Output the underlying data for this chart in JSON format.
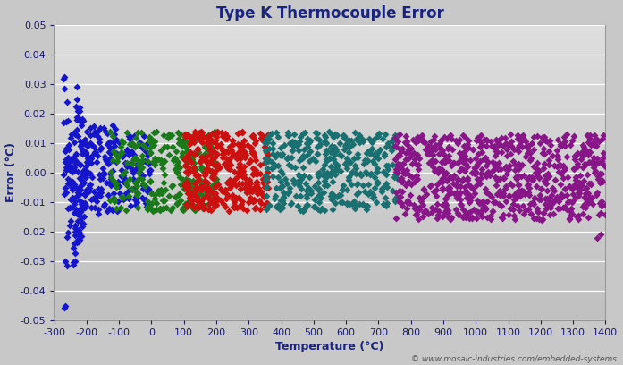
{
  "title": "Type K Thermocouple Error",
  "xlabel": "Temperature (°C)",
  "ylabel": "Error (°C)",
  "xlim": [
    -300,
    1400
  ],
  "ylim": [
    -0.05,
    0.05
  ],
  "xticks": [
    -300,
    -200,
    -100,
    0,
    100,
    200,
    300,
    400,
    500,
    600,
    700,
    800,
    900,
    1000,
    1100,
    1200,
    1300,
    1400
  ],
  "yticks": [
    -0.05,
    -0.04,
    -0.03,
    -0.02,
    -0.01,
    0.0,
    0.01,
    0.02,
    0.03,
    0.04,
    0.05
  ],
  "outer_bg_color": "#c8c8c8",
  "title_color": "#1a237e",
  "axis_label_color": "#1a237e",
  "tick_label_color": "#1a1a6e",
  "grid_color": "#ffffff",
  "watermark": "© www.mosaic-industries.com/embedded-systems",
  "watermark_color": "#555555",
  "blue_color": "#1515cc",
  "green_color": "#1a7a1a",
  "red_color": "#cc1010",
  "teal_color": "#1a7070",
  "purple_color": "#881688",
  "marker": "D",
  "marker_size": 4,
  "title_fontsize": 12,
  "label_fontsize": 9,
  "tick_fontsize": 8
}
